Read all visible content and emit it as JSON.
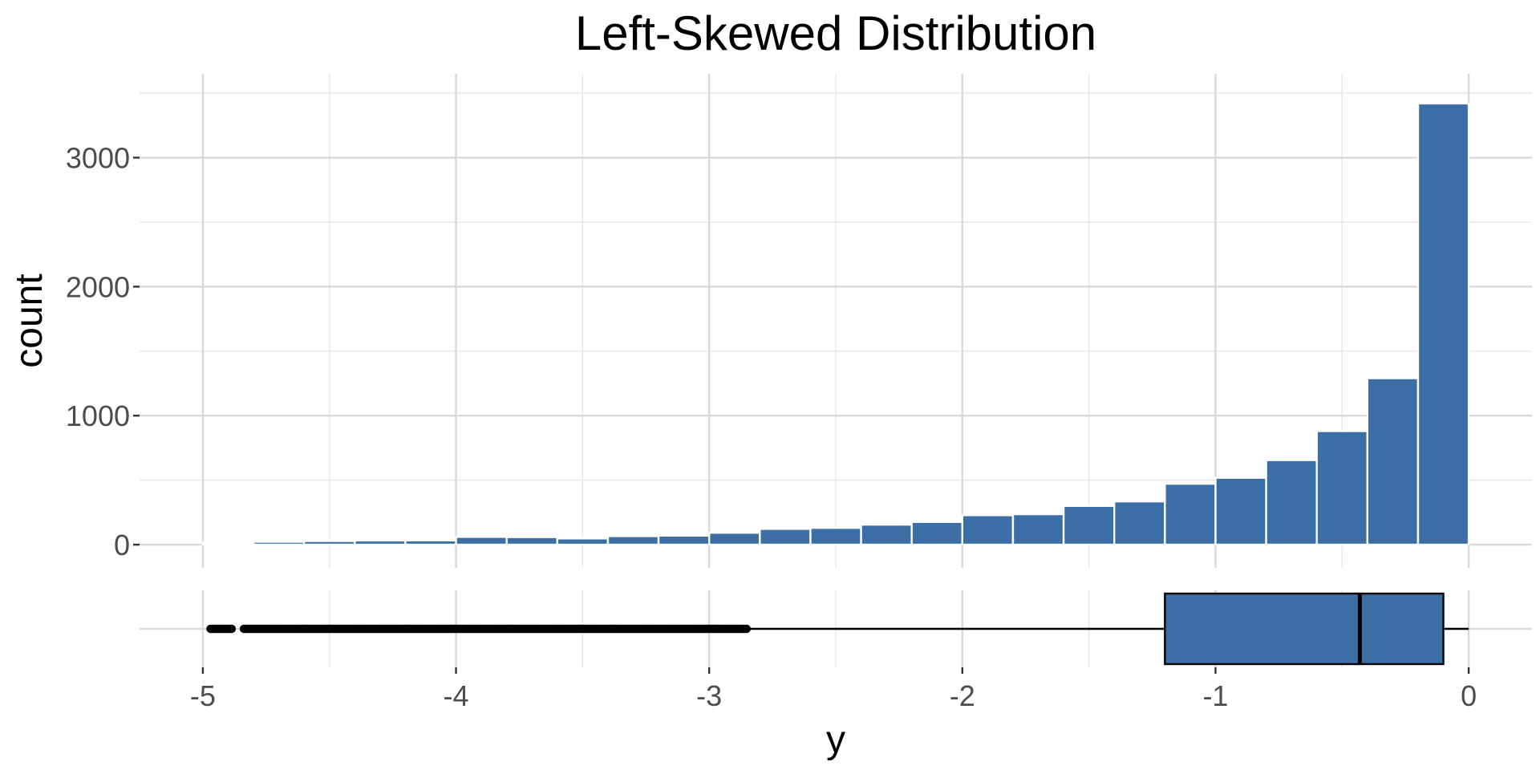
{
  "chart_data": [
    {
      "type": "bar",
      "subtype": "histogram",
      "title": "Left-Skewed Distribution",
      "xlabel": "",
      "ylabel": "count",
      "xlim": [
        -5.25,
        0.25
      ],
      "ylim": [
        -180,
        3650
      ],
      "bar_color": "#3A6EA5",
      "bar_outline": "#FFFFFF",
      "grid": true,
      "legend": "none",
      "x_ticks": [
        -5,
        -4,
        -3,
        -2,
        -1,
        0
      ],
      "y_ticks": [
        0,
        1000,
        2000,
        3000
      ],
      "y_tick_labels": [
        "0",
        "1000",
        "2000",
        "3000"
      ],
      "bins": [
        {
          "x0": -5.0,
          "x1": -4.8,
          "count": 15
        },
        {
          "x0": -4.8,
          "x1": -4.6,
          "count": 22
        },
        {
          "x0": -4.6,
          "x1": -4.4,
          "count": 28
        },
        {
          "x0": -4.4,
          "x1": -4.2,
          "count": 32
        },
        {
          "x0": -4.2,
          "x1": -4.0,
          "count": 33
        },
        {
          "x0": -4.0,
          "x1": -3.8,
          "count": 60
        },
        {
          "x0": -3.8,
          "x1": -3.6,
          "count": 58
        },
        {
          "x0": -3.6,
          "x1": -3.4,
          "count": 48
        },
        {
          "x0": -3.4,
          "x1": -3.2,
          "count": 66
        },
        {
          "x0": -3.2,
          "x1": -3.0,
          "count": 70
        },
        {
          "x0": -3.0,
          "x1": -2.8,
          "count": 92
        },
        {
          "x0": -2.8,
          "x1": -2.6,
          "count": 122
        },
        {
          "x0": -2.6,
          "x1": -2.4,
          "count": 130
        },
        {
          "x0": -2.4,
          "x1": -2.2,
          "count": 155
        },
        {
          "x0": -2.2,
          "x1": -2.0,
          "count": 176
        },
        {
          "x0": -2.0,
          "x1": -1.8,
          "count": 228
        },
        {
          "x0": -1.8,
          "x1": -1.6,
          "count": 236
        },
        {
          "x0": -1.6,
          "x1": -1.4,
          "count": 300
        },
        {
          "x0": -1.4,
          "x1": -1.2,
          "count": 335
        },
        {
          "x0": -1.2,
          "x1": -1.0,
          "count": 472
        },
        {
          "x0": -1.0,
          "x1": -0.8,
          "count": 518
        },
        {
          "x0": -0.8,
          "x1": -0.6,
          "count": 655
        },
        {
          "x0": -0.6,
          "x1": -0.4,
          "count": 880
        },
        {
          "x0": -0.4,
          "x1": -0.2,
          "count": 1290
        },
        {
          "x0": -0.2,
          "x1": 0.0,
          "count": 3420
        }
      ]
    },
    {
      "type": "boxplot",
      "xlabel": "y",
      "xlim": [
        -5.25,
        0.25
      ],
      "fill": "#3A6EA5",
      "q1": -1.2,
      "median": -0.43,
      "q3": -0.1,
      "whisker_low": -2.85,
      "whisker_high": 0.0,
      "x_ticks": [
        -5,
        -4,
        -3,
        -2,
        -1,
        0
      ],
      "x_tick_labels": [
        "-5",
        "-4",
        "-3",
        "-2",
        "-1",
        "0"
      ],
      "outlier_min": -4.97,
      "outlier_max": -2.85,
      "outlier_gaps": [
        [
          -4.88,
          -4.84
        ]
      ]
    }
  ]
}
